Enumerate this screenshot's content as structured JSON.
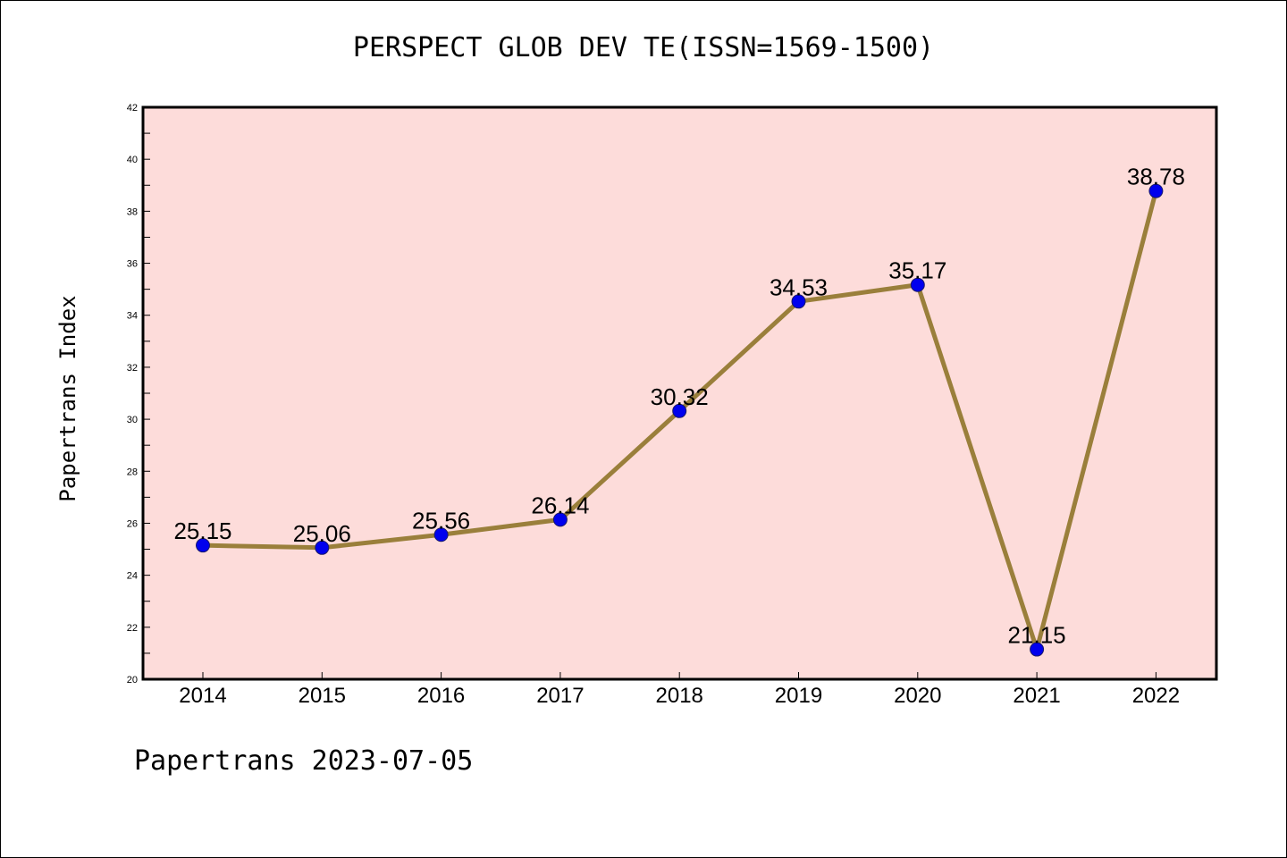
{
  "chart_data": {
    "type": "line",
    "title": "PERSPECT GLOB DEV TE(ISSN=1569-1500)",
    "xlabel": "",
    "ylabel": "Papertrans Index",
    "categories": [
      "2014",
      "2015",
      "2016",
      "2017",
      "2018",
      "2019",
      "2020",
      "2021",
      "2022"
    ],
    "values": [
      25.15,
      25.06,
      25.56,
      26.14,
      30.32,
      34.53,
      35.17,
      21.15,
      38.78
    ],
    "data_labels": [
      "25.15",
      "25.06",
      "25.56",
      "26.14",
      "30.32",
      "34.53",
      "35.17",
      "21.15",
      "38.78"
    ],
    "ylim": [
      20,
      42
    ],
    "yticks": [
      "20",
      "22",
      "24",
      "26",
      "28",
      "30",
      "32",
      "34",
      "36",
      "38",
      "40",
      "42"
    ],
    "grid": false,
    "legend": "none",
    "colors": {
      "plot_background": "#fddcda",
      "line": "#9a7f3b",
      "marker": "#0000ee"
    }
  },
  "footer": {
    "note": "Papertrans 2023-07-05"
  }
}
